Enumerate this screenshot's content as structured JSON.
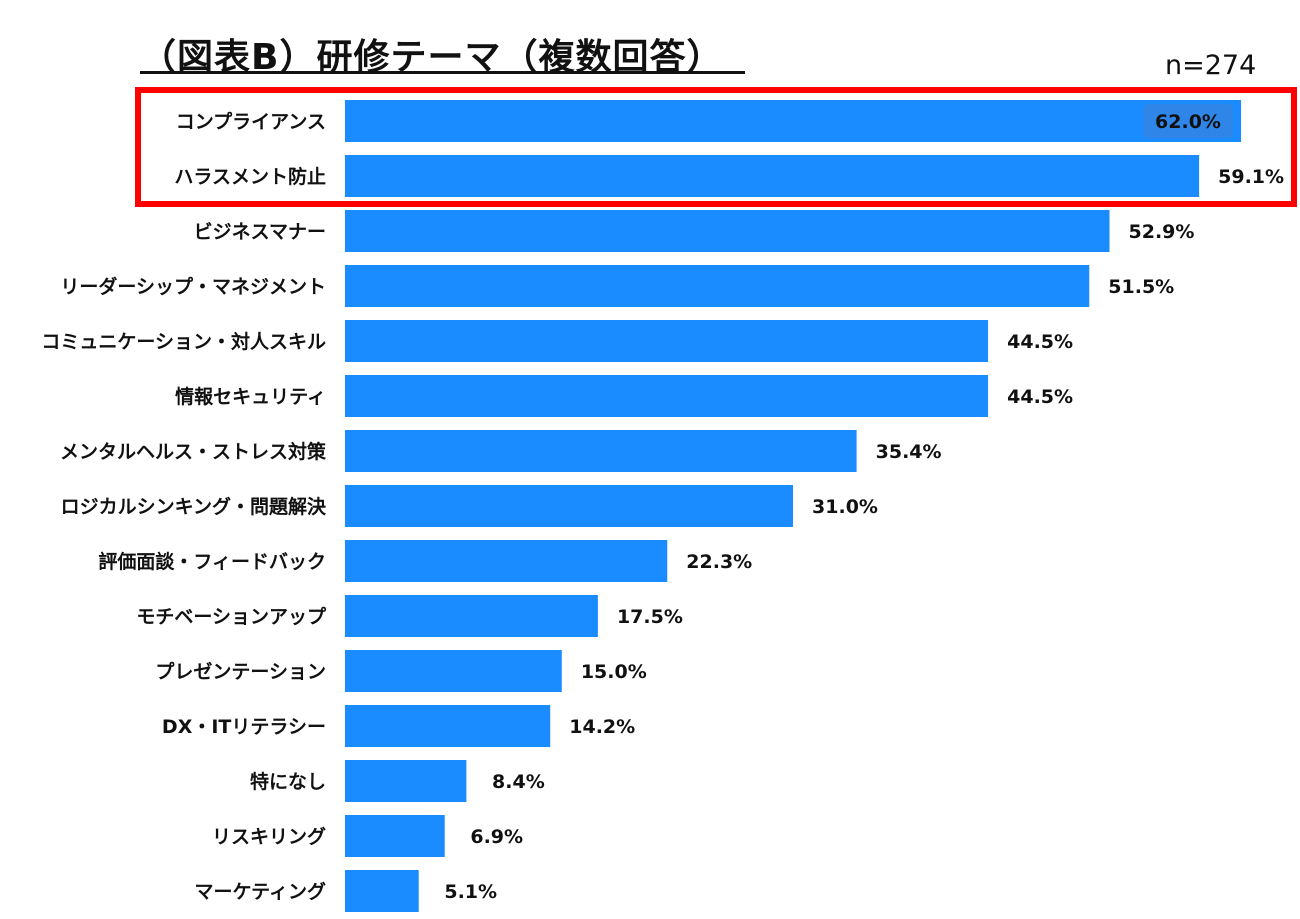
{
  "title": "（図表B）研修テーマ（複数回答）",
  "sample_size": "n=274",
  "colors": {
    "bar": "#1a8cff",
    "highlight": "#ff0000",
    "inner_label_box": "#2f86e8"
  },
  "chart_data": {
    "type": "bar",
    "orientation": "horizontal",
    "title": "（図表B）研修テーマ（複数回答）",
    "categories": [
      "コンプライアンス",
      "ハラスメント防止",
      "ビジネスマナー",
      "リーダーシップ・マネジメント",
      "コミュニケーション・対人スキル",
      "情報セキュリティ",
      "メンタルヘルス・ストレス対策",
      "ロジカルシンキング・問題解決",
      "評価面談・フィードバック",
      "モチベーションアップ",
      "プレゼンテーション",
      "DX・ITリテラシー",
      "特になし",
      "リスキリング",
      "マーケティング"
    ],
    "values": [
      62.0,
      59.1,
      52.9,
      51.5,
      44.5,
      44.5,
      35.4,
      31.0,
      22.3,
      17.5,
      15.0,
      14.2,
      8.4,
      6.9,
      5.1
    ],
    "labels": [
      "62.0%",
      "59.1%",
      "52.9%",
      "51.5%",
      "44.5%",
      "44.5%",
      "35.4%",
      "31.0%",
      "22.3%",
      "17.5%",
      "15.0%",
      "14.2%",
      "8.4%",
      "6.9%",
      "5.1%"
    ],
    "highlighted": [
      "コンプライアンス",
      "ハラスメント防止"
    ],
    "unit": "%",
    "xlim": [
      0,
      62
    ],
    "grid": false,
    "legend": "none"
  }
}
